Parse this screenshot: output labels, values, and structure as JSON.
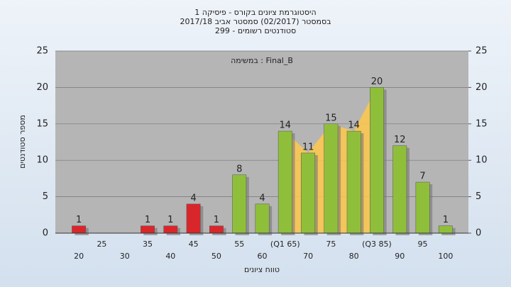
{
  "chart_data": {
    "type": "bar",
    "title": "היסטוגרמת ציונים בקורס - פיסיקה 1",
    "subtitle": "בסמסטר  (02/2017)  סמסטר אביב  2017/18",
    "subtitle2": "סטודנטים רשומים - 299",
    "annotation": "במשימה : Final_B",
    "x_label": "טווח ציונים",
    "y_label": "מספר סטודנטים",
    "categories": [
      "20",
      "25",
      "30",
      "35",
      "40",
      "45",
      "50",
      "55",
      "60",
      "(Q1 65)",
      "70",
      "75",
      "80",
      "(Q3 85)",
      "90",
      "95",
      "100"
    ],
    "values": [
      1,
      0,
      0,
      1,
      1,
      4,
      1,
      8,
      4,
      14,
      11,
      15,
      14,
      20,
      12,
      7,
      1
    ],
    "colors": [
      "#d9262a",
      "#d9262a",
      "#d9262a",
      "#d9262a",
      "#d9262a",
      "#d9262a",
      "#d9262a",
      "#8fbf3a",
      "#8fbf3a",
      "#8fbf3a",
      "#8fbf3a",
      "#8fbf3a",
      "#8fbf3a",
      "#8fbf3a",
      "#8fbf3a",
      "#8fbf3a",
      "#8fbf3a"
    ],
    "highlight": {
      "from": 9,
      "to": 13,
      "color": "#ffc84a"
    },
    "ylim": [
      0,
      25
    ],
    "yticks": [
      0,
      5,
      10,
      15,
      20,
      25
    ],
    "y2lim": [
      0,
      25
    ],
    "y2ticks": [
      0,
      5,
      10,
      15,
      20,
      25
    ],
    "grid": true
  }
}
